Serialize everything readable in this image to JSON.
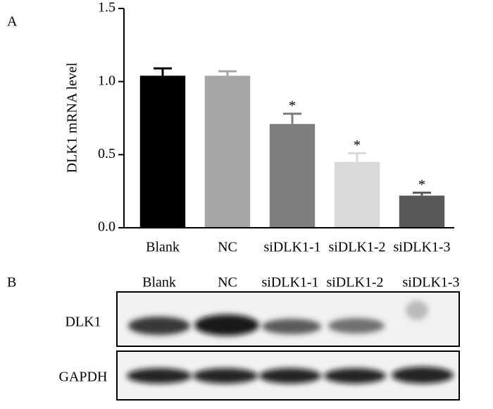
{
  "chart_data": {
    "type": "bar",
    "panel_label": "A",
    "y_label": "DLK1 mRNA level",
    "categories": [
      "Blank",
      "NC",
      "siDLK1-1",
      "siDLK1-2",
      "siDLK1-3"
    ],
    "values": [
      1.04,
      1.04,
      0.71,
      0.45,
      0.22
    ],
    "errors": [
      0.05,
      0.03,
      0.07,
      0.06,
      0.02
    ],
    "colors": [
      "#000000",
      "#a6a6a6",
      "#7f7f7f",
      "#d9d9d9",
      "#595959"
    ],
    "significance": [
      null,
      null,
      "*",
      "*",
      "*"
    ],
    "ylim": [
      0,
      1.5
    ],
    "yticks": [
      {
        "value": 0,
        "label": "0.0"
      },
      {
        "value": 0.5,
        "label": "0.5"
      },
      {
        "value": 1,
        "label": "1.0"
      },
      {
        "value": 1.5,
        "label": "1.5"
      }
    ],
    "grid": false
  },
  "blot": {
    "panel_label": "B",
    "lanes": [
      "Blank",
      "NC",
      "siDLK1-1",
      "siDLK1-2",
      "siDLK1-3"
    ],
    "rows": [
      "DLK1",
      "GAPDH"
    ]
  }
}
